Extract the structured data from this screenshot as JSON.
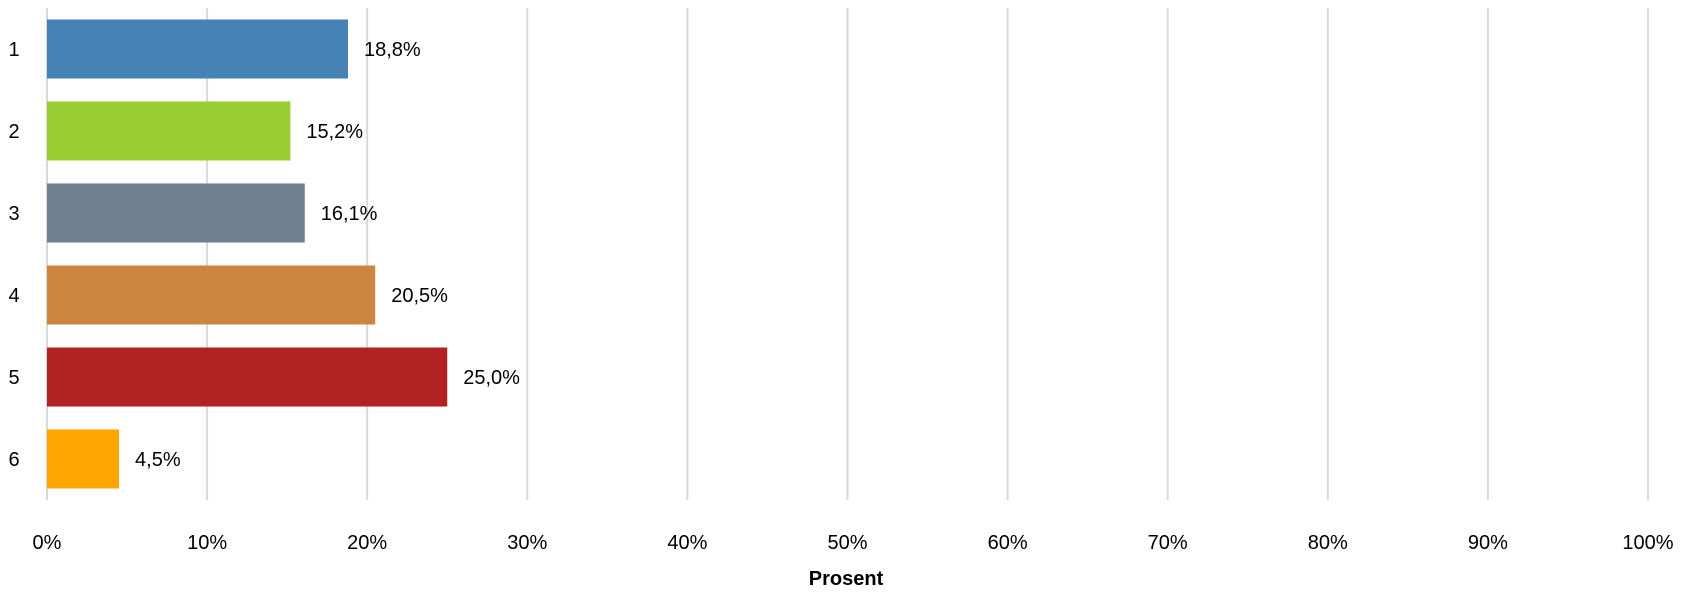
{
  "chart_data": {
    "type": "bar",
    "orientation": "horizontal",
    "categories": [
      "1",
      "2",
      "3",
      "4",
      "5",
      "6"
    ],
    "values": [
      18.8,
      15.2,
      16.1,
      20.5,
      25.0,
      4.5
    ],
    "value_labels": [
      "18,8%",
      "15,2%",
      "16,1%",
      "20,5%",
      "25,0%",
      "4,5%"
    ],
    "colors": [
      "#4682B4",
      "#9ACD32",
      "#708090",
      "#CD853F",
      "#B22222",
      "#FFA500"
    ],
    "xlabel": "Prosent",
    "ylabel": "",
    "title": "",
    "xlim": [
      0,
      100
    ],
    "x_ticks": [
      0,
      10,
      20,
      30,
      40,
      50,
      60,
      70,
      80,
      90,
      100
    ],
    "x_tick_labels": [
      "0%",
      "10%",
      "20%",
      "30%",
      "40%",
      "50%",
      "60%",
      "70%",
      "80%",
      "90%",
      "100%"
    ],
    "grid": "vertical",
    "gridline_color": "#D9D9D9",
    "legend": "none"
  }
}
